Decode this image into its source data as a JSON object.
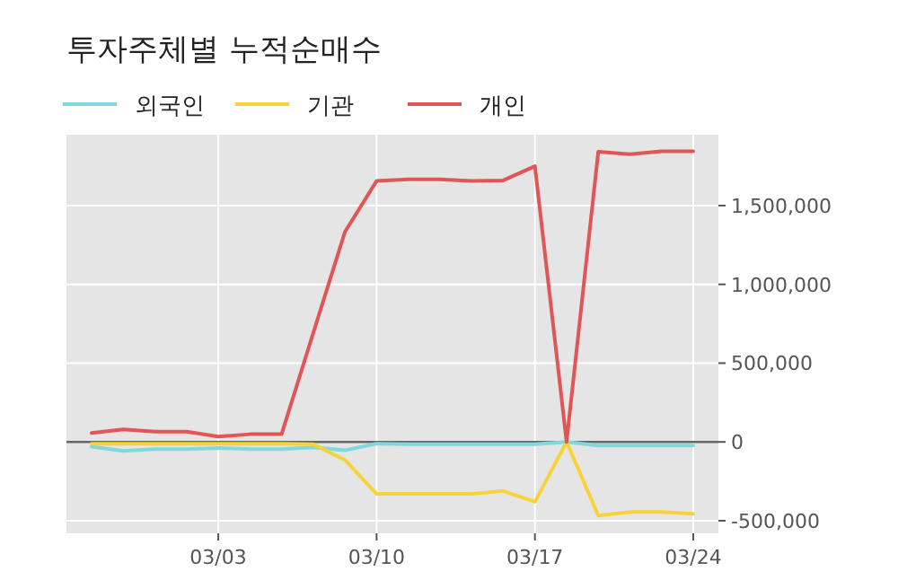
{
  "chart_data": {
    "type": "line",
    "title": "투자주체별 누적순매수",
    "categories": [
      null,
      null,
      null,
      null,
      "03/03",
      null,
      null,
      null,
      null,
      "03/10",
      null,
      null,
      null,
      null,
      "03/17",
      null,
      null,
      null,
      null,
      "03/24"
    ],
    "series": [
      {
        "name": "외국인",
        "color": "#7fd8dc",
        "values": [
          -30000,
          -57000,
          -46000,
          -46000,
          -38000,
          -46000,
          -46000,
          -34000,
          -53000,
          -11000,
          -15000,
          -15000,
          -15000,
          -15000,
          -15000,
          0,
          -23000,
          -23000,
          -23000,
          -23000
        ]
      },
      {
        "name": "기관",
        "color": "#f8d23a",
        "values": [
          -11000,
          -11000,
          -11000,
          -11000,
          -11000,
          -11000,
          -11000,
          -15000,
          -114000,
          -330000,
          -330000,
          -330000,
          -330000,
          -311000,
          -380000,
          0,
          -467000,
          -444000,
          -444000,
          -456000
        ]
      },
      {
        "name": "개인",
        "color": "#e05555",
        "values": [
          57000,
          80000,
          65000,
          65000,
          34000,
          49000,
          49000,
          691000,
          1333000,
          1656000,
          1667000,
          1667000,
          1656000,
          1660000,
          1750000,
          0,
          1842000,
          1826000,
          1845000,
          1845000
        ]
      }
    ],
    "ylim": [
      -580000,
      1950000
    ],
    "yticks": [
      {
        "value": -500000,
        "label": "-500,000"
      },
      0,
      {
        "value": 500000,
        "label": "500,000"
      },
      {
        "value": 1000000,
        "label": "1,000,000"
      },
      {
        "value": 1500000,
        "label": "1,500,000"
      }
    ],
    "ref_lines": [
      {
        "axis": "y",
        "value": 0,
        "color": "#666666"
      }
    ],
    "grid": true,
    "legend": "top"
  }
}
